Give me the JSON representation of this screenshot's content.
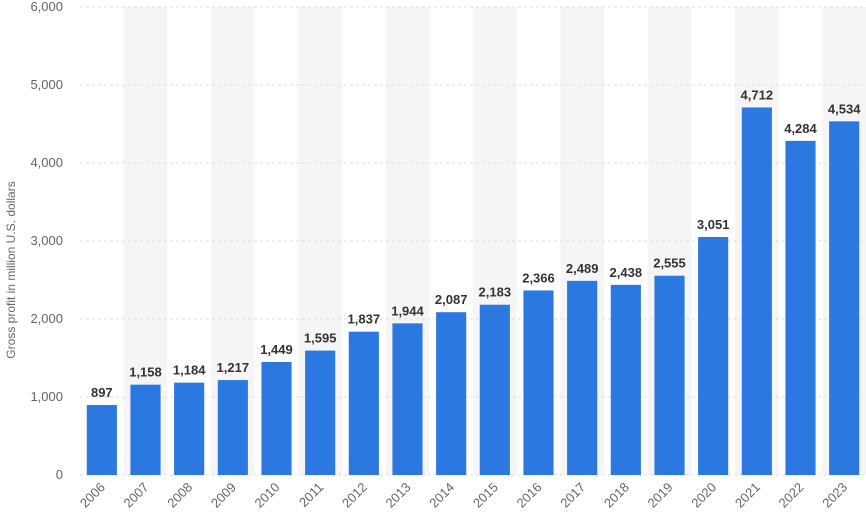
{
  "chart_data": {
    "type": "bar",
    "title": "",
    "xlabel": "",
    "ylabel": "Gross profit in million U.S. dollars",
    "categories": [
      "2006",
      "2007",
      "2008",
      "2009",
      "2010",
      "2011",
      "2012",
      "2013",
      "2014",
      "2015",
      "2016",
      "2017",
      "2018",
      "2019",
      "2020",
      "2021",
      "2022",
      "2023"
    ],
    "values": [
      897,
      1158,
      1184,
      1217,
      1449,
      1595,
      1837,
      1944,
      2087,
      2183,
      2366,
      2489,
      2438,
      2555,
      3051,
      4712,
      4284,
      4534
    ],
    "value_labels": [
      "897",
      "1,158",
      "1,184",
      "1,217",
      "1,449",
      "1,595",
      "1,837",
      "1,944",
      "2,087",
      "2,183",
      "2,366",
      "2,489",
      "2,438",
      "2,555",
      "3,051",
      "4,712",
      "4,284",
      "4,534"
    ],
    "ylim": [
      0,
      6000
    ],
    "y_ticks": [
      0,
      1000,
      2000,
      3000,
      4000,
      5000,
      6000
    ],
    "y_tick_labels": [
      "0",
      "1,000",
      "2,000",
      "3,000",
      "4,000",
      "5,000",
      "6,000"
    ],
    "grid": true,
    "bar_color": "#2a78e0",
    "band_color": "#f5f5f5",
    "grid_color": "#dddddd"
  }
}
